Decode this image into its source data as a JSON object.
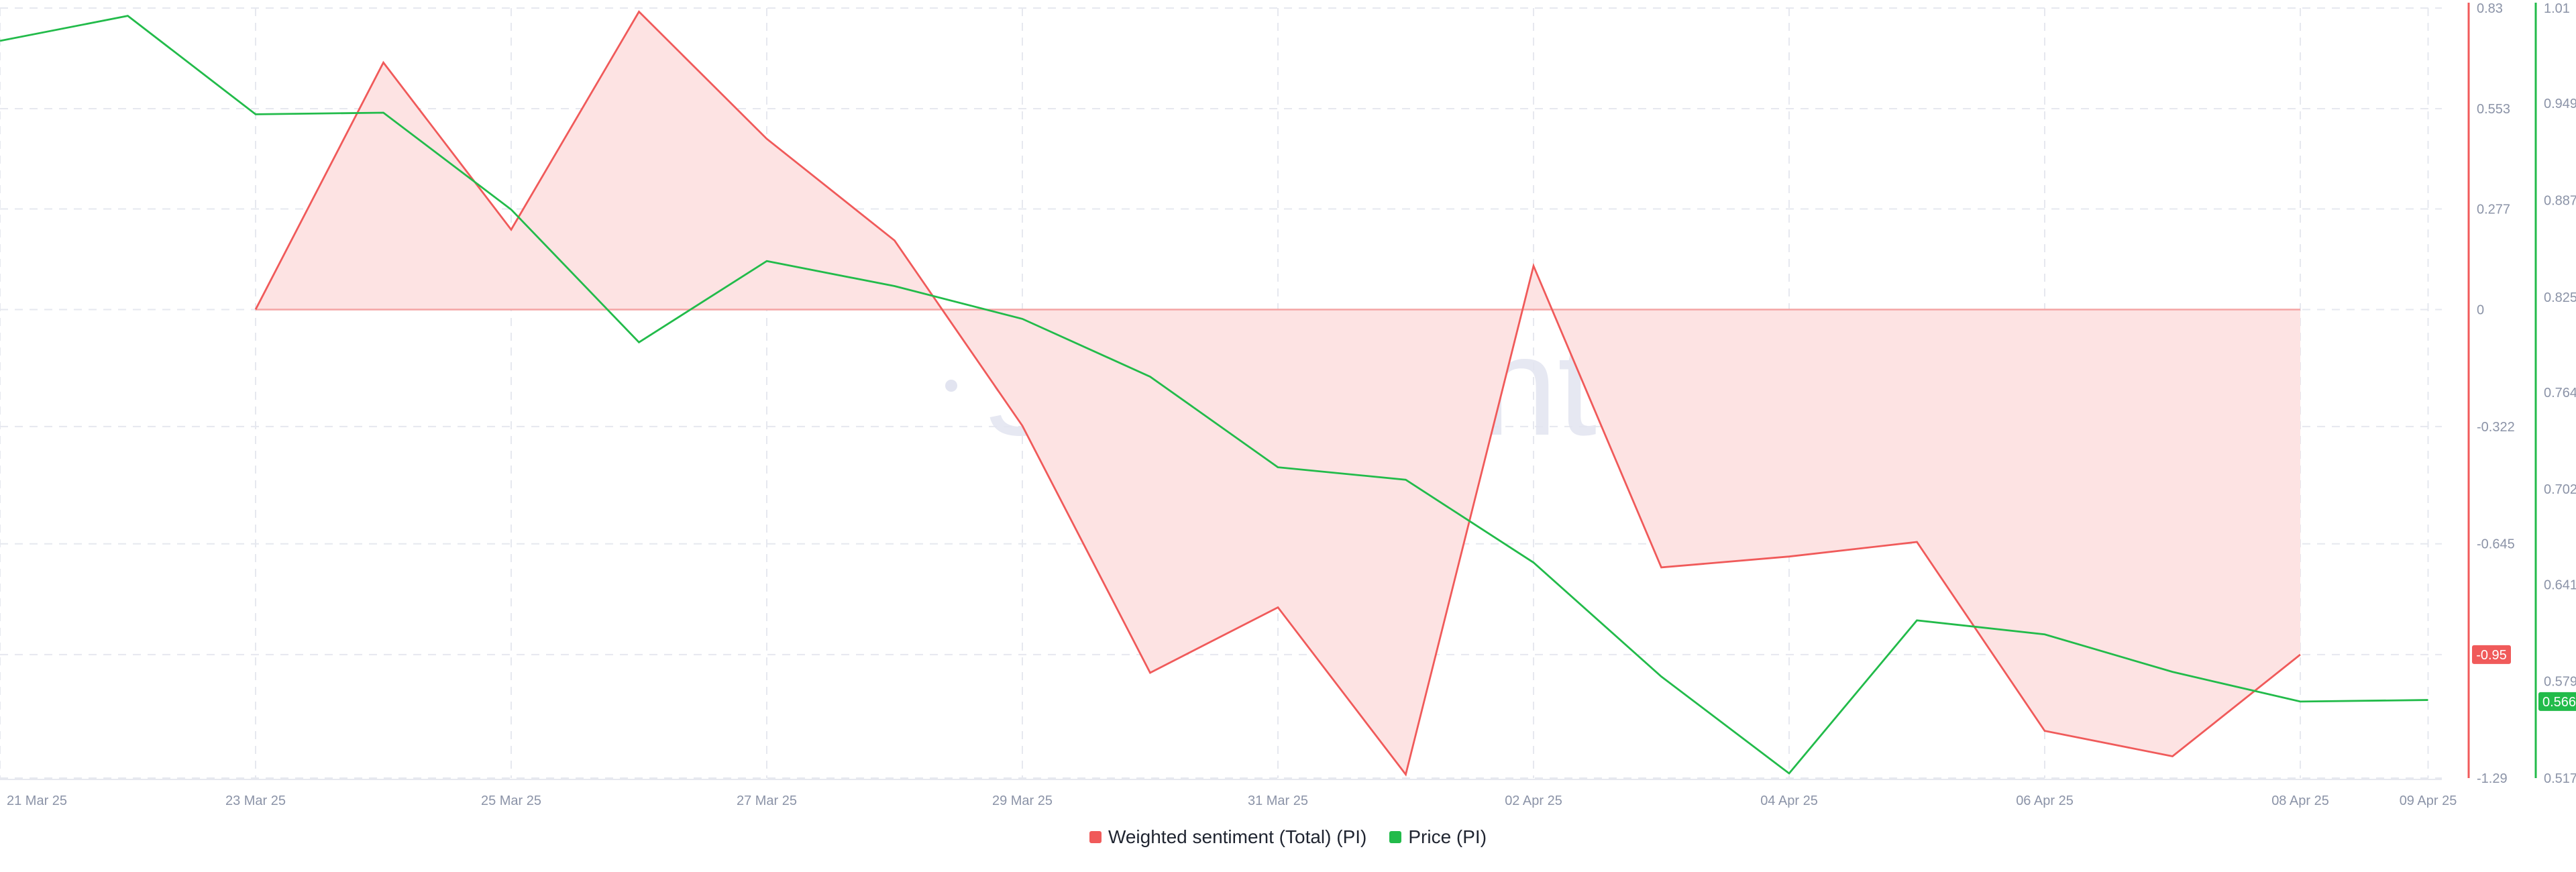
{
  "watermark": "santiment",
  "legend": [
    {
      "label": "Weighted sentiment (Total) (PI)",
      "color": "#f05a5a"
    },
    {
      "label": "Price (PI)",
      "color": "#22bb4a"
    }
  ],
  "chart_data": {
    "type": "line",
    "x": [
      "21 Mar 25",
      "22 Mar 25",
      "23 Mar 25",
      "24 Mar 25",
      "25 Mar 25",
      "26 Mar 25",
      "27 Mar 25",
      "28 Mar 25",
      "29 Mar 25",
      "30 Mar 25",
      "31 Mar 25",
      "01 Apr 25",
      "02 Apr 25",
      "03 Apr 25",
      "04 Apr 25",
      "05 Apr 25",
      "06 Apr 25",
      "07 Apr 25",
      "08 Apr 25",
      "09 Apr 25"
    ],
    "x_tick_labels": [
      "21 Mar 25",
      "23 Mar 25",
      "25 Mar 25",
      "27 Mar 25",
      "29 Mar 25",
      "31 Mar 25",
      "02 Apr 25",
      "04 Apr 25",
      "06 Apr 25",
      "08 Apr 25",
      "09 Apr 25"
    ],
    "series": [
      {
        "name": "Weighted sentiment (Total) (PI)",
        "axis": "left",
        "color": "#f05a5a",
        "fill": "#fde3e3",
        "values": [
          null,
          null,
          0.0,
          0.68,
          0.22,
          0.82,
          0.47,
          0.19,
          -0.32,
          -1.0,
          -0.82,
          -1.28,
          0.12,
          -0.71,
          -0.68,
          -0.64,
          -1.16,
          -1.23,
          -0.95,
          null
        ]
      },
      {
        "name": "Price (PI)",
        "axis": "right",
        "color": "#22bb4a",
        "values": [
          0.989,
          1.005,
          0.942,
          0.943,
          0.881,
          0.796,
          0.848,
          0.832,
          0.811,
          0.774,
          0.716,
          0.708,
          0.655,
          0.582,
          0.52,
          0.618,
          0.609,
          0.585,
          0.566,
          0.567
        ]
      }
    ],
    "left_axis": {
      "ticks": [
        "0.83",
        "0.553",
        "0.277",
        "0",
        "-0.322",
        "-0.645",
        "-0.95",
        "-1.29"
      ],
      "ylim": [
        -1.29,
        0.83
      ],
      "color": "#f05a5a",
      "current_value_label": "-0.95"
    },
    "right_axis": {
      "ticks": [
        "1.01",
        "0.949",
        "0.887",
        "0.825",
        "0.764",
        "0.702",
        "0.641",
        "0.579",
        "0.517"
      ],
      "ylim": [
        0.517,
        1.01
      ],
      "color": "#22bb4a",
      "current_value_label": "0.566"
    },
    "grid": true,
    "legend_position": "bottom-center"
  }
}
